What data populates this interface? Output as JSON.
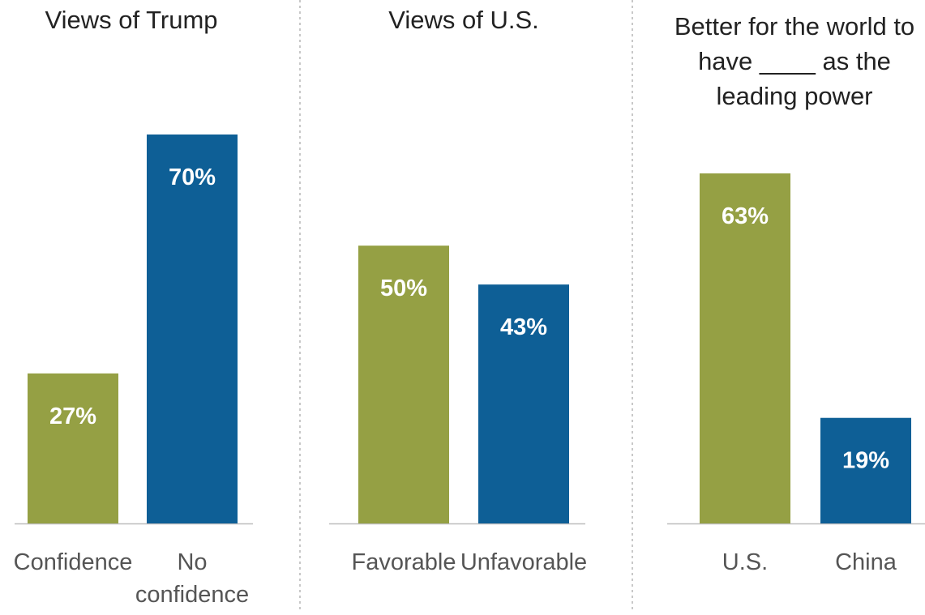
{
  "chart_data": [
    {
      "type": "bar",
      "title": "Views of Trump",
      "categories": [
        "Confidence",
        "No confidence"
      ],
      "category_lines": [
        [
          "Confidence"
        ],
        [
          "No",
          "confidence"
        ]
      ],
      "values": [
        27,
        70
      ],
      "value_labels": [
        "27%",
        "70%"
      ],
      "colors": [
        "#95A044",
        "#0E5F96"
      ],
      "ylim": [
        0,
        70
      ]
    },
    {
      "type": "bar",
      "title": "Views of U.S.",
      "categories": [
        "Favorable",
        "Unfavorable"
      ],
      "category_lines": [
        [
          "Favorable"
        ],
        [
          "Unfavorable"
        ]
      ],
      "values": [
        50,
        43
      ],
      "value_labels": [
        "50%",
        "43%"
      ],
      "colors": [
        "#95A044",
        "#0E5F96"
      ],
      "ylim": [
        0,
        70
      ]
    },
    {
      "type": "bar",
      "title": "Better for the world to have ____ as the leading power",
      "title_lines": [
        "Better for the world to",
        "have ____ as the",
        "leading power"
      ],
      "categories": [
        "U.S.",
        "China"
      ],
      "category_lines": [
        [
          "U.S."
        ],
        [
          "China"
        ]
      ],
      "values": [
        63,
        19
      ],
      "value_labels": [
        "63%",
        "19%"
      ],
      "colors": [
        "#95A044",
        "#0E5F96"
      ],
      "ylim": [
        0,
        70
      ]
    }
  ]
}
